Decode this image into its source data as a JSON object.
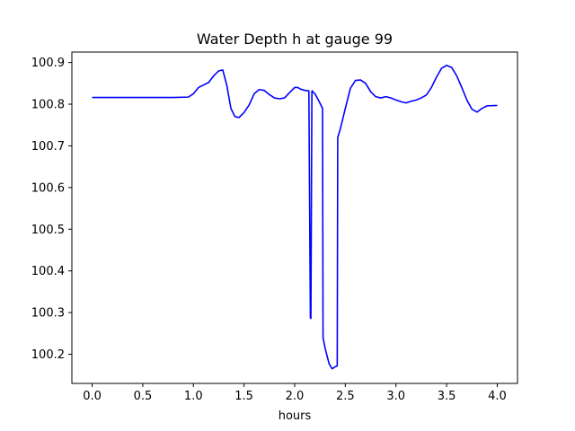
{
  "chart_data": {
    "type": "line",
    "title": "Water Depth h at gauge 99",
    "xlabel": "hours",
    "ylabel": "",
    "xlim": [
      -0.2,
      4.2
    ],
    "ylim": [
      100.13,
      100.925
    ],
    "grid": false,
    "xticks": [
      0.0,
      0.5,
      1.0,
      1.5,
      2.0,
      2.5,
      3.0,
      3.5,
      4.0
    ],
    "xtick_labels": [
      "0.0",
      "0.5",
      "1.0",
      "1.5",
      "2.0",
      "2.5",
      "3.0",
      "3.5",
      "4.0"
    ],
    "yticks": [
      100.2,
      100.3,
      100.4,
      100.5,
      100.6,
      100.7,
      100.8,
      100.9
    ],
    "ytick_labels": [
      "100.2",
      "100.3",
      "100.4",
      "100.5",
      "100.6",
      "100.7",
      "100.8",
      "100.9"
    ],
    "series": [
      {
        "color": "#0000ff",
        "x": [
          0.0,
          0.2,
          0.4,
          0.6,
          0.8,
          0.95,
          1.0,
          1.05,
          1.1,
          1.15,
          1.2,
          1.25,
          1.29,
          1.33,
          1.37,
          1.41,
          1.45,
          1.5,
          1.55,
          1.6,
          1.65,
          1.7,
          1.75,
          1.8,
          1.85,
          1.9,
          1.95,
          2.0,
          2.03,
          2.06,
          2.1,
          2.14,
          2.155,
          2.16,
          2.17,
          2.175,
          2.18,
          2.2,
          2.24,
          2.275,
          2.28,
          2.3,
          2.34,
          2.37,
          2.4,
          2.42,
          2.425,
          2.45,
          2.5,
          2.55,
          2.6,
          2.65,
          2.7,
          2.75,
          2.8,
          2.85,
          2.9,
          2.95,
          3.0,
          3.05,
          3.1,
          3.15,
          3.2,
          3.25,
          3.3,
          3.35,
          3.4,
          3.45,
          3.5,
          3.55,
          3.6,
          3.65,
          3.7,
          3.75,
          3.8,
          3.85,
          3.9,
          4.0
        ],
        "y": [
          100.816,
          100.816,
          100.816,
          100.816,
          100.816,
          100.817,
          100.825,
          100.84,
          100.846,
          100.852,
          100.868,
          100.88,
          100.882,
          100.845,
          100.79,
          100.77,
          100.768,
          100.78,
          100.798,
          100.825,
          100.835,
          100.833,
          100.823,
          100.815,
          100.813,
          100.815,
          100.828,
          100.84,
          100.84,
          100.836,
          100.833,
          100.832,
          100.287,
          100.286,
          100.831,
          100.832,
          100.829,
          100.825,
          100.807,
          100.79,
          100.24,
          100.215,
          100.177,
          100.165,
          100.17,
          100.172,
          100.72,
          100.74,
          100.79,
          100.838,
          100.857,
          100.858,
          100.85,
          100.83,
          100.818,
          100.815,
          100.818,
          100.815,
          100.81,
          100.806,
          100.803,
          100.807,
          100.81,
          100.815,
          100.822,
          100.84,
          100.865,
          100.886,
          100.893,
          100.888,
          100.868,
          100.84,
          100.81,
          100.788,
          100.781,
          100.79,
          100.796,
          100.797
        ]
      }
    ]
  }
}
